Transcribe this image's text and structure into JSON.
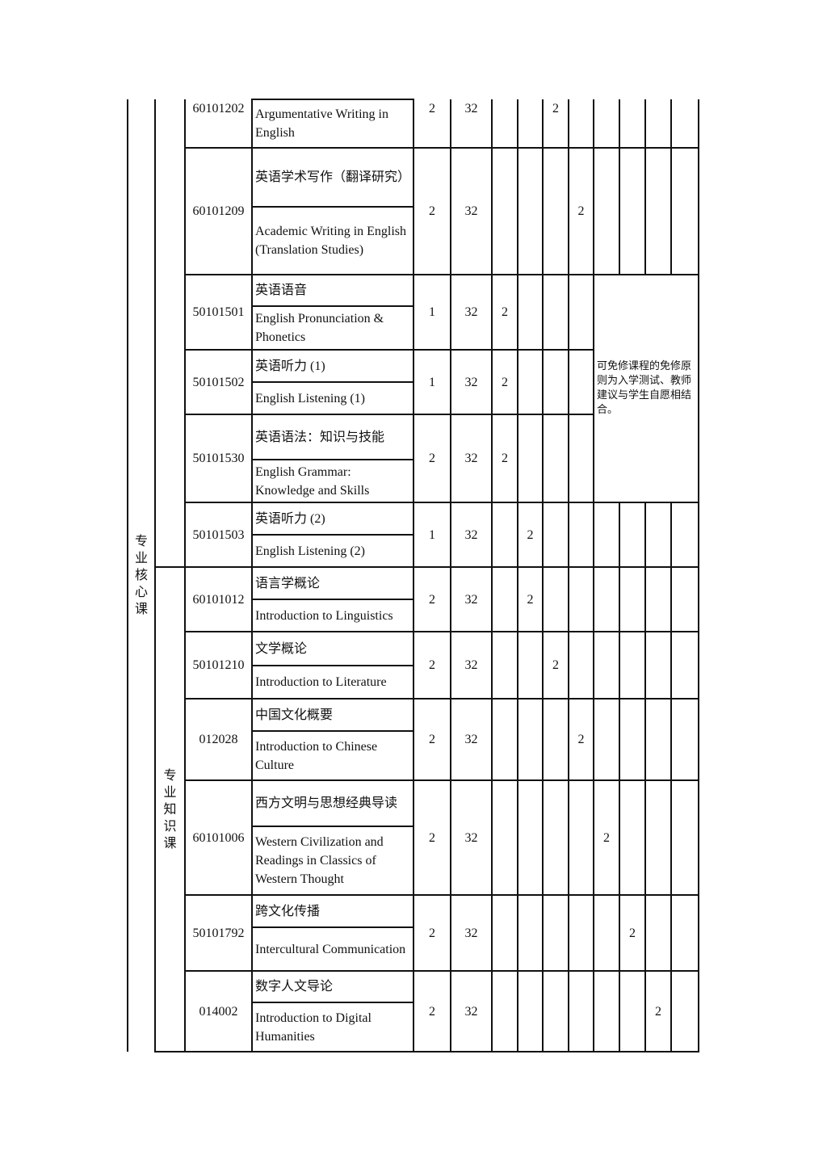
{
  "groups": [
    {
      "label": "专业核心课",
      "level": "outer"
    },
    {
      "label": "",
      "level": "inner"
    },
    {
      "label": "专业知识课",
      "level": "inner"
    }
  ],
  "note": "可免修课程的免修原则为入学测试、教师建议与学生自愿相结合。",
  "courses": [
    {
      "code": "60101202",
      "cn": "",
      "en": "Argumentative Writing in English",
      "credits": "2",
      "hours": "32",
      "semester": 3,
      "hours_per_week": "2"
    },
    {
      "code": "60101209",
      "cn": "英语学术写作（翻译研究）",
      "en": "Academic Writing in English (Translation Studies)",
      "credits": "2",
      "hours": "32",
      "semester": 4,
      "hours_per_week": "2"
    },
    {
      "code": "50101501",
      "cn": "英语语音",
      "en": "English Pronunciation & Phonetics",
      "credits": "1",
      "hours": "32",
      "semester": 1,
      "hours_per_week": "2"
    },
    {
      "code": "50101502",
      "cn": "英语听力 (1)",
      "en": "English Listening (1)",
      "credits": "1",
      "hours": "32",
      "semester": 1,
      "hours_per_week": "2"
    },
    {
      "code": "50101530",
      "cn": "英语语法：知识与技能",
      "en": "English Grammar: Knowledge and Skills",
      "credits": "2",
      "hours": "32",
      "semester": 1,
      "hours_per_week": "2"
    },
    {
      "code": "50101503",
      "cn": "英语听力 (2)",
      "en": "English Listening (2)",
      "credits": "1",
      "hours": "32",
      "semester": 2,
      "hours_per_week": "2"
    },
    {
      "code": "60101012",
      "cn": "语言学概论",
      "en": "Introduction to Linguistics",
      "credits": "2",
      "hours": "32",
      "semester": 2,
      "hours_per_week": "2"
    },
    {
      "code": "50101210",
      "cn": "文学概论",
      "en": "Introduction to Literature",
      "credits": "2",
      "hours": "32",
      "semester": 3,
      "hours_per_week": "2"
    },
    {
      "code": "012028",
      "cn": "中国文化概要",
      "en": "Introduction to Chinese Culture",
      "credits": "2",
      "hours": "32",
      "semester": 4,
      "hours_per_week": "2"
    },
    {
      "code": "60101006",
      "cn": "西方文明与思想经典导读",
      "en": "Western Civilization and Readings in Classics of Western Thought",
      "credits": "2",
      "hours": "32",
      "semester": 5,
      "hours_per_week": "2"
    },
    {
      "code": "50101792",
      "cn": "跨文化传播",
      "en": "Intercultural Communication",
      "credits": "2",
      "hours": "32",
      "semester": 6,
      "hours_per_week": "2"
    },
    {
      "code": "014002",
      "cn": "数字人文导论",
      "en": "Introduction to Digital Humanities",
      "credits": "2",
      "hours": "32",
      "semester": 7,
      "hours_per_week": "2"
    }
  ]
}
